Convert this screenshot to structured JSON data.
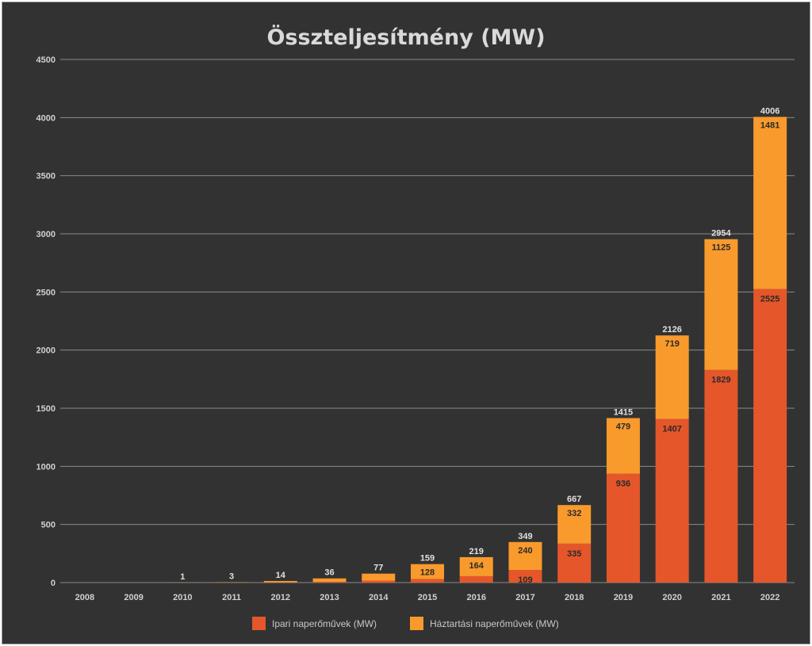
{
  "chart_data": {
    "type": "bar",
    "stacked": true,
    "title": "Összteljesítmény (MW)",
    "categories": [
      "2008",
      "2009",
      "2010",
      "2011",
      "2012",
      "2013",
      "2014",
      "2015",
      "2016",
      "2017",
      "2018",
      "2019",
      "2020",
      "2021",
      "2022"
    ],
    "series": [
      {
        "name": "Ipari naperőművek (MW)",
        "color": "#e5562a",
        "values": [
          0,
          0,
          0,
          0,
          2,
          6,
          17,
          31,
          55,
          109,
          335,
          936,
          1407,
          1829,
          2525
        ],
        "labels": [
          "",
          "",
          "",
          "",
          "",
          "",
          "",
          "",
          "",
          "109",
          "335",
          "936",
          "1407",
          "1829",
          "2525"
        ]
      },
      {
        "name": "Háztartási naperőművek (MW)",
        "color": "#f99a2c",
        "values": [
          0,
          0,
          1,
          3,
          12,
          30,
          60,
          128,
          164,
          240,
          332,
          479,
          719,
          1125,
          1481
        ],
        "labels": [
          "",
          "",
          "",
          "",
          "",
          "",
          "",
          "128",
          "164",
          "240",
          "332",
          "479",
          "719",
          "1125",
          "1481"
        ]
      }
    ],
    "totals": [
      "",
      "",
      "1",
      "3",
      "14",
      "36",
      "77",
      "159",
      "219",
      "349",
      "667",
      "1415",
      "2126",
      "2954",
      "4006"
    ],
    "ylim": [
      0,
      4500
    ],
    "yticks": [
      "0",
      "500",
      "1000",
      "1500",
      "2000",
      "2500",
      "3000",
      "3500",
      "4000",
      "4500"
    ],
    "grid": true,
    "legend_position": "bottom"
  }
}
